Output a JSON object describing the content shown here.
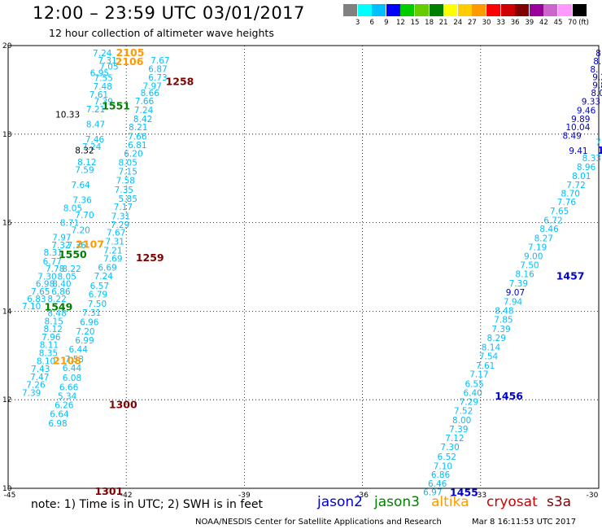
{
  "header": {
    "title": "12:00 – 23:59 UTC 03/01/2017",
    "subtitle": "12 hour collection of altimeter wave heights"
  },
  "colorbar": {
    "unit": "(ft)",
    "labels": [
      "3",
      "6",
      "9",
      "12",
      "15",
      "18",
      "21",
      "24",
      "27",
      "30",
      "33",
      "36",
      "39",
      "42",
      "45",
      "70"
    ],
    "colors": [
      "#808080",
      "#00ffff",
      "#00bfff",
      "#0000ff",
      "#00cc00",
      "#66cc00",
      "#008000",
      "#ffff00",
      "#ffcc00",
      "#ff9900",
      "#ff0000",
      "#cc0000",
      "#800000",
      "#990099",
      "#cc66cc",
      "#ff99ff",
      "#000000"
    ]
  },
  "footer": {
    "note": "note:  1) Time is in UTC;  2) SWH is in feet",
    "satellites": [
      {
        "name": "jason2",
        "color": "#0000cc"
      },
      {
        "name": "jason3",
        "color": "#008000"
      },
      {
        "name": "altika",
        "color": "#ff9900"
      },
      {
        "name": "cryosat",
        "color": "#cc0000"
      },
      {
        "name": "s3a",
        "color": "#800000"
      }
    ],
    "credit": "NOAA/NESDIS Center for Satellite Applications and Research",
    "timestamp": "Mar  8 16:11:53 UTC 2017"
  },
  "chart_data": {
    "type": "scatter",
    "title": "12 hour collection of altimeter wave heights",
    "xlim": [
      -45,
      -30
    ],
    "ylim": [
      10,
      20
    ],
    "xticks": [
      "-45",
      "-42",
      "-39",
      "-36",
      "-33",
      "-30"
    ],
    "yticks": [
      "10",
      "12",
      "14",
      "16",
      "18",
      "20"
    ],
    "grid": true,
    "series": [
      {
        "name": "altika",
        "color": "#00bfff",
        "points": [
          {
            "x": -42.85,
            "y": 19.83,
            "v": "7.24"
          },
          {
            "x": -42.72,
            "y": 19.67,
            "v": "7.31"
          },
          {
            "x": -42.68,
            "y": 19.53,
            "v": "7.05"
          },
          {
            "x": -42.92,
            "y": 19.38,
            "v": "6.95"
          },
          {
            "x": -42.82,
            "y": 19.27,
            "v": "7.55"
          },
          {
            "x": -42.84,
            "y": 19.08,
            "v": "7.48"
          },
          {
            "x": -42.94,
            "y": 18.9,
            "v": "7.61"
          },
          {
            "x": -42.82,
            "y": 18.74,
            "v": "7.39"
          },
          {
            "x": -43.02,
            "y": 18.57,
            "v": "7.21"
          },
          {
            "x": -43.02,
            "y": 18.23,
            "v": "8.47"
          },
          {
            "x": -43.04,
            "y": 17.89,
            "v": "7.46"
          },
          {
            "x": -43.12,
            "y": 17.72,
            "v": "7.24"
          },
          {
            "x": -43.24,
            "y": 17.37,
            "v": "8.12"
          },
          {
            "x": -43.3,
            "y": 17.2,
            "v": "7.59"
          },
          {
            "x": -43.4,
            "y": 16.86,
            "v": "7.64"
          },
          {
            "x": -43.36,
            "y": 16.52,
            "v": "7.36"
          },
          {
            "x": -43.6,
            "y": 16.33,
            "v": "8.05"
          },
          {
            "x": -43.3,
            "y": 16.18,
            "v": "7.70"
          },
          {
            "x": -43.68,
            "y": 16.0,
            "v": "8.71"
          },
          {
            "x": -43.4,
            "y": 15.84,
            "v": "7.20"
          },
          {
            "x": -43.88,
            "y": 15.67,
            "v": "7.97"
          },
          {
            "x": -43.9,
            "y": 15.5,
            "v": "7.32"
          },
          {
            "x": -43.5,
            "y": 15.5,
            "v": "7.36"
          },
          {
            "x": -44.1,
            "y": 15.33,
            "v": "8.31"
          },
          {
            "x": -44.12,
            "y": 15.13,
            "v": "6.77"
          },
          {
            "x": -43.63,
            "y": 14.96,
            "v": "8.22"
          },
          {
            "x": -44.05,
            "y": 14.96,
            "v": "7.78"
          },
          {
            "x": -44.25,
            "y": 14.79,
            "v": "7.30"
          },
          {
            "x": -43.75,
            "y": 14.79,
            "v": "8.05"
          },
          {
            "x": -44.3,
            "y": 14.62,
            "v": "6.98"
          },
          {
            "x": -43.88,
            "y": 14.62,
            "v": "8.40"
          },
          {
            "x": -44.42,
            "y": 14.45,
            "v": "7.65"
          },
          {
            "x": -43.9,
            "y": 14.45,
            "v": "6.86"
          },
          {
            "x": -44.52,
            "y": 14.28,
            "v": "6.83"
          },
          {
            "x": -44.0,
            "y": 14.28,
            "v": "8.22"
          },
          {
            "x": -44.65,
            "y": 14.12,
            "v": "7.10"
          },
          {
            "x": -44.0,
            "y": 13.96,
            "v": "8.48"
          },
          {
            "x": -44.08,
            "y": 13.78,
            "v": "8.15"
          },
          {
            "x": -44.1,
            "y": 13.6,
            "v": "8.12"
          },
          {
            "x": -44.15,
            "y": 13.42,
            "v": "7.96"
          },
          {
            "x": -44.2,
            "y": 13.24,
            "v": "8.11"
          },
          {
            "x": -44.22,
            "y": 13.06,
            "v": "8.35"
          },
          {
            "x": -44.28,
            "y": 12.88,
            "v": "8.10"
          },
          {
            "x": -44.42,
            "y": 12.7,
            "v": "7.43"
          },
          {
            "x": -44.44,
            "y": 12.52,
            "v": "7.47"
          },
          {
            "x": -44.54,
            "y": 12.34,
            "v": "7.26"
          },
          {
            "x": -44.65,
            "y": 12.16,
            "v": "7.39"
          },
          {
            "x": -41.38,
            "y": 19.67,
            "v": "7.67"
          },
          {
            "x": -41.44,
            "y": 19.48,
            "v": "6.87"
          },
          {
            "x": -41.44,
            "y": 19.28,
            "v": "6.73"
          },
          {
            "x": -41.58,
            "y": 19.09,
            "v": "7.97"
          },
          {
            "x": -41.64,
            "y": 18.93,
            "v": "8.66"
          },
          {
            "x": -41.78,
            "y": 18.75,
            "v": "7.66"
          },
          {
            "x": -41.8,
            "y": 18.55,
            "v": "7.24"
          },
          {
            "x": -41.82,
            "y": 18.35,
            "v": "8.42"
          },
          {
            "x": -41.94,
            "y": 18.16,
            "v": "8.21"
          },
          {
            "x": -41.96,
            "y": 17.95,
            "v": "7.66"
          },
          {
            "x": -41.96,
            "y": 17.76,
            "v": "6.81"
          },
          {
            "x": -42.06,
            "y": 17.56,
            "v": "6.20"
          },
          {
            "x": -42.2,
            "y": 17.36,
            "v": "8.05"
          },
          {
            "x": -42.2,
            "y": 17.16,
            "v": "7.15"
          },
          {
            "x": -42.26,
            "y": 16.96,
            "v": "7.58"
          },
          {
            "x": -42.3,
            "y": 16.75,
            "v": "7.35"
          },
          {
            "x": -42.2,
            "y": 16.54,
            "v": "5.85"
          },
          {
            "x": -42.32,
            "y": 16.36,
            "v": "7.17"
          },
          {
            "x": -42.38,
            "y": 16.15,
            "v": "7.31"
          },
          {
            "x": -42.4,
            "y": 15.96,
            "v": "7.29"
          },
          {
            "x": -42.5,
            "y": 15.78,
            "v": "7.67"
          },
          {
            "x": -42.53,
            "y": 15.58,
            "v": "7.31"
          },
          {
            "x": -42.58,
            "y": 15.38,
            "v": "7.21"
          },
          {
            "x": -42.58,
            "y": 15.19,
            "v": "7.69"
          },
          {
            "x": -42.72,
            "y": 14.99,
            "v": "6.69"
          },
          {
            "x": -42.82,
            "y": 14.8,
            "v": "7.24"
          },
          {
            "x": -42.92,
            "y": 14.58,
            "v": "6.57"
          },
          {
            "x": -42.96,
            "y": 14.38,
            "v": "6.79"
          },
          {
            "x": -42.98,
            "y": 14.17,
            "v": "7.50"
          },
          {
            "x": -43.12,
            "y": 13.97,
            "v": "7.31"
          },
          {
            "x": -43.18,
            "y": 13.76,
            "v": "6.96"
          },
          {
            "x": -43.28,
            "y": 13.55,
            "v": "7.20"
          },
          {
            "x": -43.3,
            "y": 13.35,
            "v": "6.99"
          },
          {
            "x": -43.46,
            "y": 13.14,
            "v": "6.44"
          },
          {
            "x": -43.56,
            "y": 12.92,
            "v": "7.53"
          },
          {
            "x": -43.62,
            "y": 12.72,
            "v": "6.44"
          },
          {
            "x": -43.62,
            "y": 12.5,
            "v": "6.08"
          },
          {
            "x": -43.7,
            "y": 12.29,
            "v": "6.66"
          },
          {
            "x": -43.74,
            "y": 12.09,
            "v": "5.34"
          },
          {
            "x": -43.82,
            "y": 11.88,
            "v": "6.26"
          },
          {
            "x": -43.94,
            "y": 11.68,
            "v": "6.64"
          },
          {
            "x": -43.98,
            "y": 11.47,
            "v": "6.98"
          },
          {
            "x": -30.08,
            "y": 17.82,
            "v": "7.44"
          },
          {
            "x": -30.42,
            "y": 17.46,
            "v": "8.33"
          },
          {
            "x": -30.56,
            "y": 17.26,
            "v": "8.96"
          },
          {
            "x": -30.68,
            "y": 17.06,
            "v": "8.01"
          },
          {
            "x": -30.82,
            "y": 16.86,
            "v": "7.72"
          },
          {
            "x": -30.96,
            "y": 16.66,
            "v": "8.70"
          },
          {
            "x": -31.06,
            "y": 16.47,
            "v": "7.76"
          },
          {
            "x": -31.24,
            "y": 16.27,
            "v": "7.65"
          },
          {
            "x": -31.4,
            "y": 16.06,
            "v": "6.72"
          },
          {
            "x": -31.5,
            "y": 15.86,
            "v": "8.46"
          },
          {
            "x": -31.64,
            "y": 15.65,
            "v": "8.27"
          },
          {
            "x": -31.8,
            "y": 15.45,
            "v": "7.19"
          },
          {
            "x": -31.9,
            "y": 15.25,
            "v": "9.00"
          },
          {
            "x": -32.0,
            "y": 15.05,
            "v": "7.50"
          },
          {
            "x": -32.12,
            "y": 14.84,
            "v": "8.16"
          },
          {
            "x": -32.28,
            "y": 14.63,
            "v": "7.39"
          },
          {
            "x": -32.42,
            "y": 14.22,
            "v": "7.94"
          },
          {
            "x": -32.64,
            "y": 14.02,
            "v": "8.48"
          },
          {
            "x": -32.66,
            "y": 13.81,
            "v": "7.85"
          },
          {
            "x": -32.72,
            "y": 13.6,
            "v": "7.39"
          },
          {
            "x": -32.84,
            "y": 13.4,
            "v": "8.29"
          },
          {
            "x": -32.98,
            "y": 13.19,
            "v": "8.14"
          },
          {
            "x": -33.04,
            "y": 12.99,
            "v": "7.54"
          },
          {
            "x": -33.12,
            "y": 12.78,
            "v": "7.61"
          },
          {
            "x": -33.28,
            "y": 12.58,
            "v": "7.17"
          },
          {
            "x": -33.4,
            "y": 12.36,
            "v": "6.55"
          },
          {
            "x": -33.44,
            "y": 12.16,
            "v": "6.40"
          },
          {
            "x": -33.54,
            "y": 11.96,
            "v": "7.29"
          },
          {
            "x": -33.68,
            "y": 11.76,
            "v": "7.52"
          },
          {
            "x": -33.72,
            "y": 11.54,
            "v": "8.00"
          },
          {
            "x": -33.8,
            "y": 11.34,
            "v": "7.39"
          },
          {
            "x": -33.9,
            "y": 11.14,
            "v": "7.12"
          },
          {
            "x": -34.02,
            "y": 10.94,
            "v": "7.30"
          },
          {
            "x": -34.1,
            "y": 10.72,
            "v": "6.52"
          },
          {
            "x": -34.2,
            "y": 10.51,
            "v": "7.10"
          },
          {
            "x": -34.26,
            "y": 10.31,
            "v": "6.86"
          },
          {
            "x": -34.34,
            "y": 10.11,
            "v": "6.46"
          },
          {
            "x": -34.46,
            "y": 9.92,
            "v": "6.97"
          }
        ]
      },
      {
        "name": "jason2",
        "color": "#0000cc",
        "points": [
          {
            "x": -30.08,
            "y": 19.83,
            "v": "8"
          },
          {
            "x": -30.14,
            "y": 19.65,
            "v": "8."
          },
          {
            "x": -30.22,
            "y": 19.47,
            "v": "8."
          },
          {
            "x": -30.16,
            "y": 19.29,
            "v": "9.2"
          },
          {
            "x": -30.16,
            "y": 19.11,
            "v": "9.82"
          },
          {
            "x": -30.2,
            "y": 18.93,
            "v": "8.05"
          },
          {
            "x": -30.44,
            "y": 18.74,
            "v": "9.33"
          },
          {
            "x": -30.56,
            "y": 18.54,
            "v": "9.46"
          },
          {
            "x": -30.7,
            "y": 18.35,
            "v": "9.89"
          },
          {
            "x": -30.84,
            "y": 18.16,
            "v": "10.04"
          },
          {
            "x": -30.92,
            "y": 17.97,
            "v": "8.49"
          },
          {
            "x": -30.76,
            "y": 17.63,
            "v": "9.41"
          },
          {
            "x": -32.36,
            "y": 14.43,
            "v": "9.07"
          },
          {
            "x": -30.04,
            "y": 17.63,
            "v": "14"
          },
          {
            "x": -31.08,
            "y": 14.79,
            "v": "1457"
          },
          {
            "x": -32.64,
            "y": 12.08,
            "v": "1456"
          },
          {
            "x": -33.78,
            "y": 9.9,
            "v": "1455"
          }
        ]
      },
      {
        "name": "jason3",
        "color": "#008000",
        "points": [
          {
            "x": -42.62,
            "y": 18.63,
            "v": "1551"
          },
          {
            "x": -43.72,
            "y": 15.28,
            "v": "1550"
          },
          {
            "x": -44.08,
            "y": 14.09,
            "v": "1549"
          }
        ]
      },
      {
        "name": "cryosat",
        "color": "#000000",
        "points": [
          {
            "x": -43.8,
            "y": 18.45,
            "v": "10.33"
          },
          {
            "x": -43.3,
            "y": 17.64,
            "v": "8.32"
          }
        ]
      },
      {
        "name": "altika-time",
        "color": "#ff9900",
        "points": [
          {
            "x": -42.26,
            "y": 19.83,
            "v": "2105"
          },
          {
            "x": -42.28,
            "y": 19.63,
            "v": "2106"
          },
          {
            "x": -43.28,
            "y": 15.51,
            "v": "2107"
          },
          {
            "x": -43.86,
            "y": 12.88,
            "v": "2108"
          }
        ]
      },
      {
        "name": "s3a",
        "color": "#800000",
        "points": [
          {
            "x": -41.0,
            "y": 19.18,
            "v": "1258"
          },
          {
            "x": -41.76,
            "y": 15.2,
            "v": "1259"
          },
          {
            "x": -42.44,
            "y": 11.88,
            "v": "1300"
          },
          {
            "x": -42.8,
            "y": 9.93,
            "v": "1301"
          }
        ]
      }
    ]
  }
}
